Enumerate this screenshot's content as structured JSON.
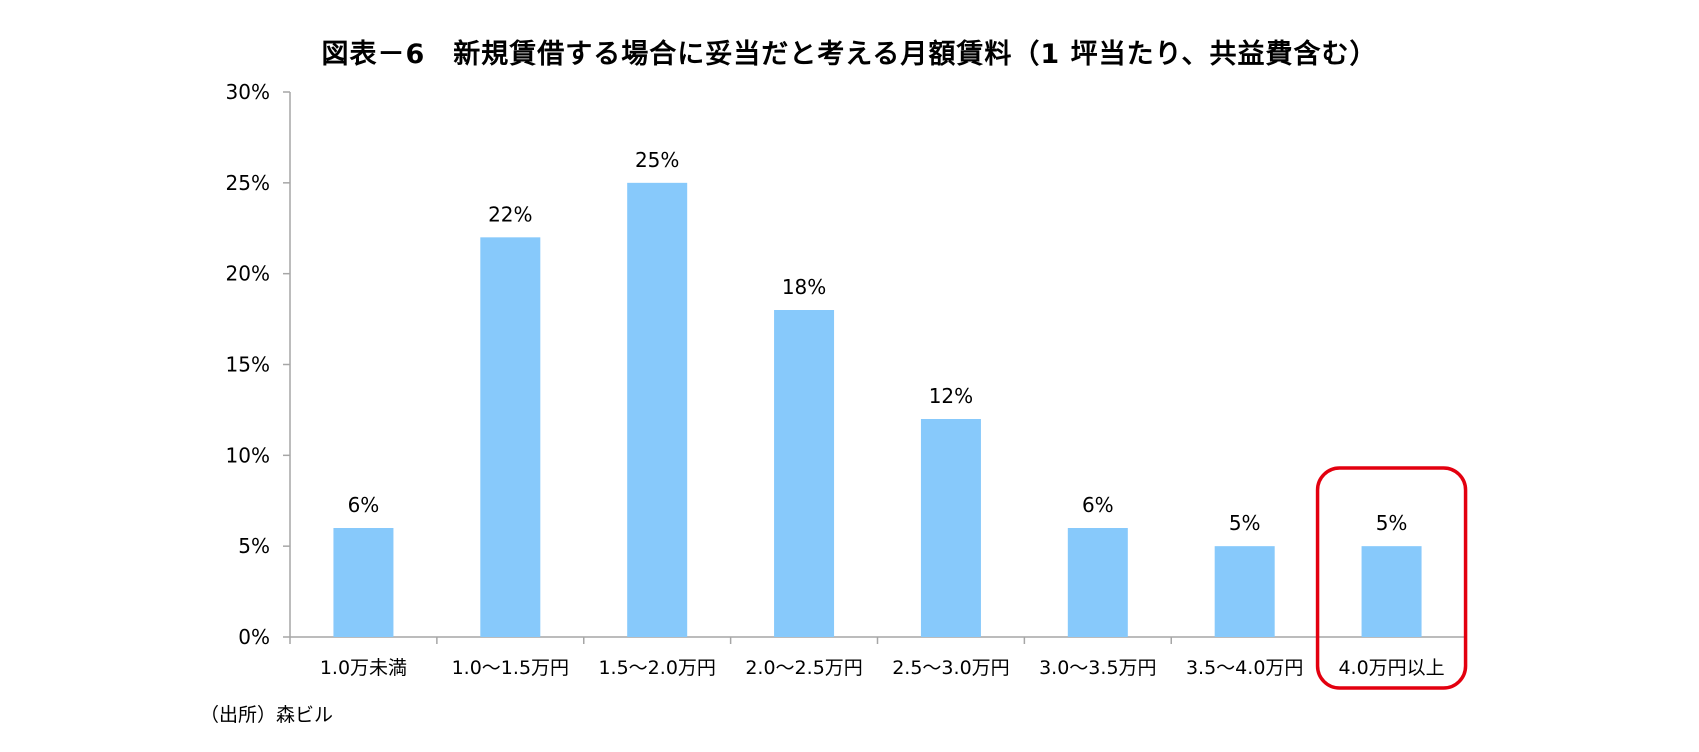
{
  "chart_data": {
    "type": "bar",
    "title": "図表－6　新規賃借する場合に妥当だと考える月額賃料（1 坪当たり、共益費含む）",
    "categories": [
      "1.0万未満",
      "1.0〜1.5万円",
      "1.5〜2.0万円",
      "2.0〜2.5万円",
      "2.5〜3.0万円",
      "3.0〜3.5万円",
      "3.5〜4.0万円",
      "4.0万円以上"
    ],
    "values": [
      6,
      22,
      25,
      18,
      12,
      6,
      5,
      5
    ],
    "data_labels": [
      "6%",
      "22%",
      "25%",
      "18%",
      "12%",
      "6%",
      "5%",
      "5%"
    ],
    "yticks": [
      "0%",
      "5%",
      "10%",
      "15%",
      "20%",
      "25%",
      "30%"
    ],
    "ylim": [
      0,
      30
    ],
    "xlabel": "",
    "ylabel": "",
    "grid": false,
    "legend": "none",
    "highlighted_category": "4.0万円以上",
    "colors": {
      "bar": "#87c9fb",
      "axis": "#a6a6a6",
      "highlight": "#e3000f"
    }
  },
  "source_note": "（出所）森ビル"
}
